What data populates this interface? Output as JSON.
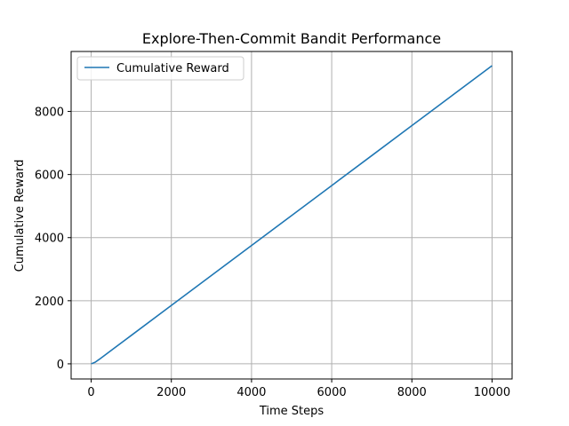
{
  "chart_data": {
    "type": "line",
    "title": "Explore-Then-Commit Bandit Performance",
    "xlabel": "Time Steps",
    "ylabel": "Cumulative Reward",
    "xlim": [
      -500,
      10500
    ],
    "ylim": [
      -480,
      9900
    ],
    "xticks": [
      0,
      2000,
      4000,
      6000,
      8000,
      10000
    ],
    "yticks": [
      0,
      2000,
      4000,
      6000,
      8000
    ],
    "grid": true,
    "legend_position": "top-left",
    "series": [
      {
        "name": "Cumulative Reward",
        "color": "#1f77b4",
        "x": [
          0,
          100,
          200,
          1000,
          2000,
          3000,
          4000,
          5000,
          6000,
          7000,
          8000,
          9000,
          10000
        ],
        "y": [
          0,
          50,
          140,
          900,
          1850,
          2800,
          3750,
          4700,
          5650,
          6600,
          7550,
          8500,
          9450
        ]
      }
    ]
  }
}
